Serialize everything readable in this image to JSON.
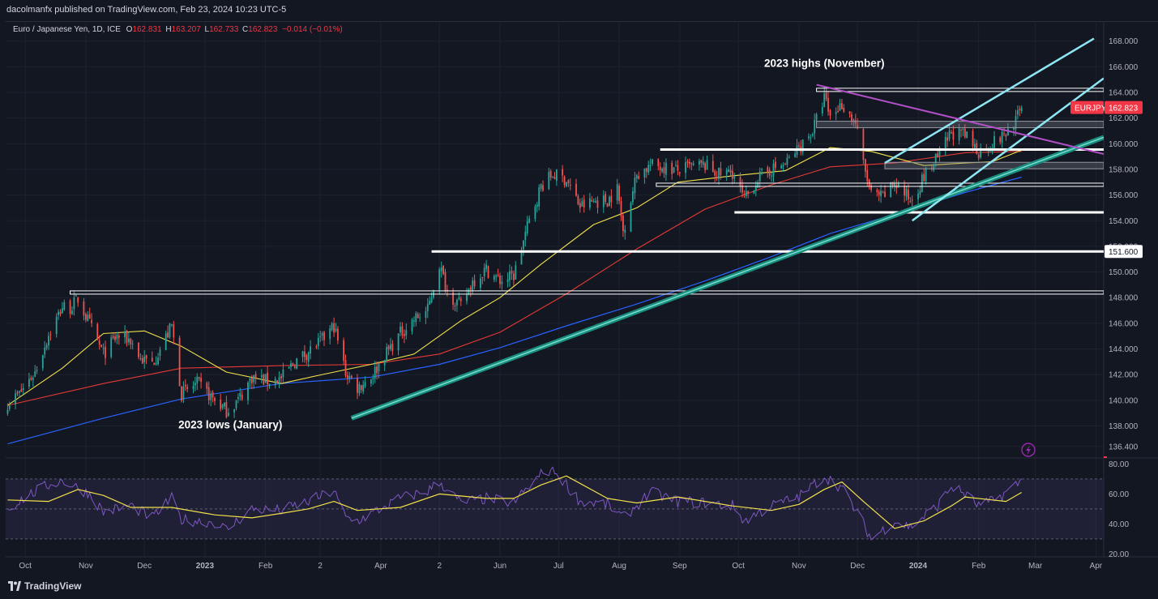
{
  "header": {
    "publisher": "dacolmanfx published on TradingView.com, Feb 23, 2024 10:23 UTC-5"
  },
  "legend": {
    "symbol": "Euro / Japanese Yen, 1D, ICE",
    "open_label": "O",
    "open": "162.831",
    "high_label": "H",
    "high": "163.207",
    "low_label": "L",
    "low": "162.733",
    "close_label": "C",
    "close": "162.823",
    "change": "−0.014 (−0.01%)"
  },
  "colors": {
    "background": "#131722",
    "bull": "#26a69a",
    "bear": "#ef5350",
    "ma_fast": "#f2e14b",
    "ma_mid": "#e53935",
    "ma_slow": "#2962ff",
    "trend": "#26a69a",
    "channel": "#8ee6f2",
    "downtrend": "#b04fc6",
    "level": "#ffffff",
    "rsi": "#7e57c2",
    "rsi_signal": "#f2e14b",
    "price_badge": "#f23645"
  },
  "icons": [
    "lightning-icon",
    "tradingview-logo-icon"
  ],
  "footer": {
    "brand": "TradingView"
  },
  "chart_data": [
    {
      "type": "candlestick",
      "title": "Euro / Japanese Yen, 1D, ICE",
      "symbol": "EURJPY",
      "last_price": "162.823",
      "ylim": [
        135.5,
        169.5
      ],
      "y_ticks": [
        "136.400",
        "138.000",
        "140.000",
        "142.000",
        "144.000",
        "146.000",
        "148.000",
        "150.000",
        "152.000",
        "154.000",
        "156.000",
        "158.000",
        "160.000",
        "162.000",
        "164.000",
        "166.000",
        "168.000"
      ],
      "y_tick_values": [
        136.4,
        138,
        140,
        142,
        144,
        146,
        148,
        150,
        152,
        154,
        156,
        158,
        160,
        162,
        164,
        166,
        168
      ],
      "x_ticks": [
        "Oct",
        "Nov",
        "Dec",
        "2023",
        "Feb",
        "2",
        "Apr",
        "2",
        "Jun",
        "Jul",
        "Aug",
        "Sep",
        "Oct",
        "Nov",
        "Dec",
        "2024",
        "Feb",
        "Mar",
        "Apr"
      ],
      "x_ticks_bold": [
        "2023",
        "2024"
      ],
      "x_range": [
        "2022-09-21",
        "2024-04-05"
      ],
      "x_tick_dates": [
        "2022-10-01",
        "2022-11-01",
        "2022-12-01",
        "2023-01-01",
        "2023-02-01",
        "2023-03-01",
        "2023-04-01",
        "2023-05-01",
        "2023-06-01",
        "2023-07-01",
        "2023-08-01",
        "2023-09-01",
        "2023-10-01",
        "2023-11-01",
        "2023-12-01",
        "2024-01-01",
        "2024-02-01",
        "2024-03-01",
        "2024-04-01"
      ],
      "price_path": [
        [
          "2022-09-22",
          139.8
        ],
        [
          "2022-09-28",
          140.5
        ],
        [
          "2022-10-06",
          142.2
        ],
        [
          "2022-10-13",
          145.1
        ],
        [
          "2022-10-20",
          147.3
        ],
        [
          "2022-10-24",
          147.2
        ],
        [
          "2022-10-28",
          147.9
        ],
        [
          "2022-11-03",
          145.9
        ],
        [
          "2022-11-10",
          143.6
        ],
        [
          "2022-11-17",
          145.0
        ],
        [
          "2022-11-24",
          144.7
        ],
        [
          "2022-11-29",
          143.2
        ],
        [
          "2022-12-05",
          142.9
        ],
        [
          "2022-12-09",
          144.0
        ],
        [
          "2022-12-15",
          145.8
        ],
        [
          "2022-12-20",
          140.5
        ],
        [
          "2022-12-28",
          141.3
        ],
        [
          "2023-01-06",
          140.0
        ],
        [
          "2023-01-12",
          139.2
        ],
        [
          "2023-01-18",
          140.0
        ],
        [
          "2023-01-25",
          141.8
        ],
        [
          "2023-02-02",
          141.5
        ],
        [
          "2023-02-09",
          141.7
        ],
        [
          "2023-02-16",
          143.0
        ],
        [
          "2023-02-23",
          143.8
        ],
        [
          "2023-03-02",
          144.7
        ],
        [
          "2023-03-08",
          145.8
        ],
        [
          "2023-03-14",
          142.2
        ],
        [
          "2023-03-20",
          141.0
        ],
        [
          "2023-03-27",
          141.8
        ],
        [
          "2023-04-03",
          143.5
        ],
        [
          "2023-04-11",
          145.2
        ],
        [
          "2023-04-18",
          146.3
        ],
        [
          "2023-04-25",
          147.0
        ],
        [
          "2023-05-01",
          150.6
        ],
        [
          "2023-05-05",
          148.5
        ],
        [
          "2023-05-12",
          147.3
        ],
        [
          "2023-05-18",
          149.3
        ],
        [
          "2023-05-25",
          150.2
        ],
        [
          "2023-06-01",
          149.3
        ],
        [
          "2023-06-08",
          149.7
        ],
        [
          "2023-06-15",
          153.5
        ],
        [
          "2023-06-22",
          156.7
        ],
        [
          "2023-06-28",
          157.6
        ],
        [
          "2023-07-05",
          157.2
        ],
        [
          "2023-07-12",
          155.1
        ],
        [
          "2023-07-19",
          155.5
        ],
        [
          "2023-07-26",
          155.6
        ],
        [
          "2023-07-31",
          156.5
        ],
        [
          "2023-08-03",
          153.2
        ],
        [
          "2023-08-10",
          157.6
        ],
        [
          "2023-08-17",
          158.3
        ],
        [
          "2023-08-24",
          158.2
        ],
        [
          "2023-08-31",
          157.9
        ],
        [
          "2023-09-07",
          158.2
        ],
        [
          "2023-09-14",
          158.3
        ],
        [
          "2023-09-21",
          157.6
        ],
        [
          "2023-09-28",
          157.8
        ],
        [
          "2023-10-04",
          155.6
        ],
        [
          "2023-10-11",
          157.3
        ],
        [
          "2023-10-18",
          158.0
        ],
        [
          "2023-10-25",
          158.4
        ],
        [
          "2023-11-01",
          159.7
        ],
        [
          "2023-11-08",
          161.0
        ],
        [
          "2023-11-14",
          163.6
        ],
        [
          "2023-11-17",
          162.1
        ],
        [
          "2023-11-23",
          163.1
        ],
        [
          "2023-11-30",
          161.6
        ],
        [
          "2023-12-04",
          158.4
        ],
        [
          "2023-12-08",
          156.0
        ],
        [
          "2023-12-14",
          155.8
        ],
        [
          "2023-12-20",
          157.0
        ],
        [
          "2023-12-28",
          155.6
        ],
        [
          "2024-01-04",
          157.4
        ],
        [
          "2024-01-11",
          158.9
        ],
        [
          "2024-01-18",
          160.9
        ],
        [
          "2024-01-25",
          160.6
        ],
        [
          "2024-02-01",
          159.4
        ],
        [
          "2024-02-08",
          160.0
        ],
        [
          "2024-02-15",
          160.8
        ],
        [
          "2024-02-21",
          162.1
        ],
        [
          "2024-02-23",
          162.823
        ]
      ],
      "ma_fast_path": [
        [
          "2022-09-22",
          139.6
        ],
        [
          "2022-10-20",
          142.5
        ],
        [
          "2022-11-10",
          145.2
        ],
        [
          "2022-12-01",
          145.4
        ],
        [
          "2022-12-20",
          144.2
        ],
        [
          "2023-01-12",
          142.2
        ],
        [
          "2023-02-09",
          141.3
        ],
        [
          "2023-03-02",
          142.0
        ],
        [
          "2023-03-27",
          142.8
        ],
        [
          "2023-04-18",
          143.6
        ],
        [
          "2023-05-12",
          146.2
        ],
        [
          "2023-06-01",
          148.0
        ],
        [
          "2023-06-22",
          150.6
        ],
        [
          "2023-07-19",
          153.7
        ],
        [
          "2023-08-10",
          155.0
        ],
        [
          "2023-08-31",
          157.0
        ],
        [
          "2023-09-28",
          157.5
        ],
        [
          "2023-10-25",
          157.9
        ],
        [
          "2023-11-17",
          159.7
        ],
        [
          "2023-12-08",
          159.4
        ],
        [
          "2024-01-04",
          158.3
        ],
        [
          "2024-01-25",
          158.5
        ],
        [
          "2024-02-08",
          158.6
        ],
        [
          "2024-02-23",
          159.5
        ]
      ],
      "ma_mid_path": [
        [
          "2022-09-22",
          139.6
        ],
        [
          "2022-11-10",
          141.3
        ],
        [
          "2022-12-20",
          142.5
        ],
        [
          "2023-02-09",
          142.7
        ],
        [
          "2023-03-27",
          142.8
        ],
        [
          "2023-05-01",
          143.6
        ],
        [
          "2023-06-01",
          145.3
        ],
        [
          "2023-07-05",
          148.3
        ],
        [
          "2023-08-10",
          151.8
        ],
        [
          "2023-09-14",
          154.9
        ],
        [
          "2023-10-18",
          156.8
        ],
        [
          "2023-11-17",
          158.2
        ],
        [
          "2023-12-20",
          158.5
        ],
        [
          "2024-01-25",
          159.3
        ],
        [
          "2024-02-23",
          159.4
        ]
      ],
      "ma_slow_path": [
        [
          "2022-09-22",
          136.6
        ],
        [
          "2022-11-10",
          138.6
        ],
        [
          "2022-12-20",
          140.1
        ],
        [
          "2023-02-09",
          141.3
        ],
        [
          "2023-03-27",
          141.8
        ],
        [
          "2023-05-01",
          142.8
        ],
        [
          "2023-06-01",
          144.1
        ],
        [
          "2023-07-05",
          145.8
        ],
        [
          "2023-08-10",
          147.5
        ],
        [
          "2023-09-14",
          149.3
        ],
        [
          "2023-10-18",
          151.2
        ],
        [
          "2023-11-17",
          153.0
        ],
        [
          "2023-12-20",
          154.5
        ],
        [
          "2024-01-25",
          156.2
        ],
        [
          "2024-02-23",
          157.4
        ]
      ],
      "horizontal_levels": [
        {
          "value": 148.4,
          "from": "2022-10-24",
          "to": "2024-04-05",
          "style": "double"
        },
        {
          "value": 151.6,
          "from": "2023-04-27",
          "to": "2024-04-05",
          "style": "solid",
          "label": "151.600"
        },
        {
          "value": 154.65,
          "from": "2023-09-29",
          "to": "2024-04-05",
          "style": "solid"
        },
        {
          "value": 156.8,
          "from": "2023-08-20",
          "to": "2024-04-05",
          "style": "double"
        },
        {
          "value": 158.3,
          "from": "2023-12-15",
          "to": "2024-04-05",
          "style": "band"
        },
        {
          "value": 159.55,
          "from": "2023-08-22",
          "to": "2024-04-05",
          "style": "solid"
        },
        {
          "value": 161.5,
          "from": "2023-11-10",
          "to": "2024-04-05",
          "style": "band"
        },
        {
          "value": 164.2,
          "from": "2023-11-10",
          "to": "2024-04-05",
          "style": "double"
        }
      ],
      "trendlines": [
        {
          "kind": "trend",
          "from": [
            "2023-03-17",
            138.6
          ],
          "to": [
            "2024-04-05",
            160.5
          ]
        },
        {
          "kind": "channel",
          "from": [
            "2023-12-15",
            158.5
          ],
          "to": [
            "2024-03-31",
            168.2
          ]
        },
        {
          "kind": "channel",
          "from": [
            "2023-12-29",
            154.0
          ],
          "to": [
            "2024-04-05",
            165.1
          ]
        },
        {
          "kind": "downtrend",
          "from": [
            "2023-11-10",
            164.6
          ],
          "to": [
            "2024-04-05",
            159.2
          ]
        }
      ],
      "annotations": [
        {
          "text": "2023 highs (November)",
          "date": "2023-11-14",
          "value": 166.0
        },
        {
          "text": "2023 lows (January)",
          "date": "2023-01-14",
          "value": 137.8
        }
      ]
    },
    {
      "type": "line",
      "title": "",
      "ylim": [
        18,
        84
      ],
      "y_ticks": [
        "80.00",
        "60.00",
        "40.00",
        "20.00"
      ],
      "y_tick_values": [
        80,
        60,
        40,
        20
      ],
      "band": [
        30,
        70
      ],
      "mid": 50,
      "rsi_path": [
        [
          "2022-09-22",
          50
        ],
        [
          "2022-10-01",
          58
        ],
        [
          "2022-10-13",
          66
        ],
        [
          "2022-10-20",
          69
        ],
        [
          "2022-10-28",
          64
        ],
        [
          "2022-11-03",
          60
        ],
        [
          "2022-11-10",
          48
        ],
        [
          "2022-11-24",
          52
        ],
        [
          "2022-12-05",
          44
        ],
        [
          "2022-12-15",
          57
        ],
        [
          "2022-12-20",
          43
        ],
        [
          "2023-01-06",
          41
        ],
        [
          "2023-01-12",
          36
        ],
        [
          "2023-01-25",
          50
        ],
        [
          "2023-02-09",
          49
        ],
        [
          "2023-02-23",
          55
        ],
        [
          "2023-03-08",
          62
        ],
        [
          "2023-03-14",
          44
        ],
        [
          "2023-03-20",
          42
        ],
        [
          "2023-04-11",
          57
        ],
        [
          "2023-04-25",
          62
        ],
        [
          "2023-05-01",
          68
        ],
        [
          "2023-05-12",
          54
        ],
        [
          "2023-05-25",
          57
        ],
        [
          "2023-06-08",
          54
        ],
        [
          "2023-06-22",
          73
        ],
        [
          "2023-06-28",
          77
        ],
        [
          "2023-07-12",
          55
        ],
        [
          "2023-07-26",
          53
        ],
        [
          "2023-08-03",
          44
        ],
        [
          "2023-08-17",
          61
        ],
        [
          "2023-08-31",
          55
        ],
        [
          "2023-09-14",
          54
        ],
        [
          "2023-09-28",
          52
        ],
        [
          "2023-10-04",
          42
        ],
        [
          "2023-10-18",
          52
        ],
        [
          "2023-11-01",
          58
        ],
        [
          "2023-11-14",
          72
        ],
        [
          "2023-11-23",
          64
        ],
        [
          "2023-12-04",
          40
        ],
        [
          "2023-12-08",
          30
        ],
        [
          "2023-12-20",
          42
        ],
        [
          "2023-12-28",
          38
        ],
        [
          "2024-01-11",
          52
        ],
        [
          "2024-01-18",
          65
        ],
        [
          "2024-01-25",
          60
        ],
        [
          "2024-02-01",
          52
        ],
        [
          "2024-02-08",
          55
        ],
        [
          "2024-02-15",
          61
        ],
        [
          "2024-02-23",
          69
        ]
      ],
      "rsi_signal_path": [
        [
          "2022-09-22",
          56
        ],
        [
          "2022-10-13",
          55
        ],
        [
          "2022-10-28",
          63
        ],
        [
          "2022-11-10",
          59
        ],
        [
          "2022-11-24",
          51
        ],
        [
          "2022-12-15",
          51
        ],
        [
          "2023-01-06",
          46
        ],
        [
          "2023-01-25",
          44
        ],
        [
          "2023-02-09",
          47
        ],
        [
          "2023-02-23",
          50
        ],
        [
          "2023-03-08",
          55
        ],
        [
          "2023-03-20",
          49
        ],
        [
          "2023-04-11",
          51
        ],
        [
          "2023-05-01",
          60
        ],
        [
          "2023-05-25",
          57
        ],
        [
          "2023-06-08",
          57
        ],
        [
          "2023-06-22",
          66
        ],
        [
          "2023-07-05",
          72
        ],
        [
          "2023-07-26",
          57
        ],
        [
          "2023-08-10",
          54
        ],
        [
          "2023-08-31",
          58
        ],
        [
          "2023-09-28",
          52
        ],
        [
          "2023-10-18",
          49
        ],
        [
          "2023-11-01",
          53
        ],
        [
          "2023-11-14",
          63
        ],
        [
          "2023-11-23",
          68
        ],
        [
          "2023-12-04",
          55
        ],
        [
          "2023-12-20",
          37
        ],
        [
          "2024-01-04",
          42
        ],
        [
          "2024-01-18",
          52
        ],
        [
          "2024-01-25",
          58
        ],
        [
          "2024-02-08",
          56
        ],
        [
          "2024-02-15",
          55
        ],
        [
          "2024-02-23",
          61
        ]
      ]
    }
  ]
}
